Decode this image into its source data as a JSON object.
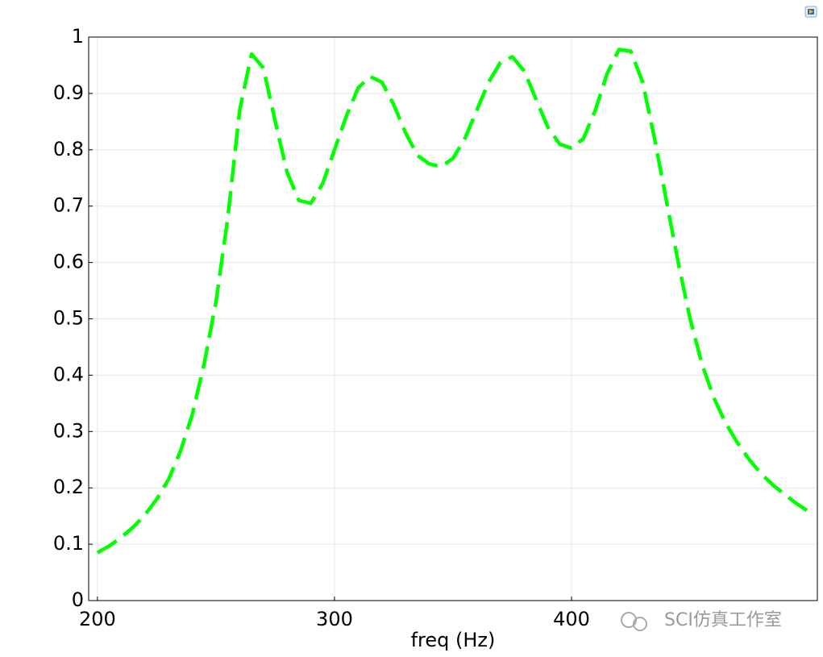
{
  "chart_data": {
    "type": "line",
    "x_label": "freq (Hz)",
    "watermark": "SCI仿真工作室",
    "x": [
      200,
      205,
      210,
      215,
      220,
      225,
      230,
      235,
      240,
      245,
      250,
      255,
      260,
      265,
      270,
      275,
      280,
      285,
      290,
      295,
      300,
      305,
      310,
      315,
      320,
      325,
      330,
      335,
      340,
      345,
      350,
      355,
      360,
      365,
      370,
      375,
      380,
      385,
      390,
      395,
      400,
      405,
      410,
      415,
      420,
      425,
      430,
      435,
      440,
      445,
      450,
      455,
      460,
      465,
      470,
      475,
      480,
      485,
      490,
      495,
      500
    ],
    "series": [
      {
        "color": "#00ff00",
        "values": [
          0.085,
          0.097,
          0.112,
          0.13,
          0.152,
          0.18,
          0.215,
          0.265,
          0.33,
          0.42,
          0.53,
          0.68,
          0.87,
          0.97,
          0.945,
          0.85,
          0.76,
          0.71,
          0.705,
          0.74,
          0.8,
          0.86,
          0.91,
          0.93,
          0.92,
          0.88,
          0.83,
          0.79,
          0.775,
          0.77,
          0.785,
          0.82,
          0.87,
          0.92,
          0.955,
          0.965,
          0.94,
          0.89,
          0.84,
          0.81,
          0.803,
          0.82,
          0.87,
          0.935,
          0.978,
          0.975,
          0.92,
          0.82,
          0.71,
          0.6,
          0.5,
          0.42,
          0.36,
          0.315,
          0.28,
          0.25,
          0.225,
          0.205,
          0.188,
          0.172,
          0.158
        ]
      }
    ],
    "xlim": [
      196.3,
      503.7
    ],
    "xticks": [
      200,
      300,
      400
    ],
    "ylim": [
      0,
      1
    ],
    "yticks": [
      0,
      0.1,
      0.2,
      0.3,
      0.4,
      0.5,
      0.6,
      0.7,
      0.8,
      0.9,
      1
    ],
    "grid": true
  }
}
